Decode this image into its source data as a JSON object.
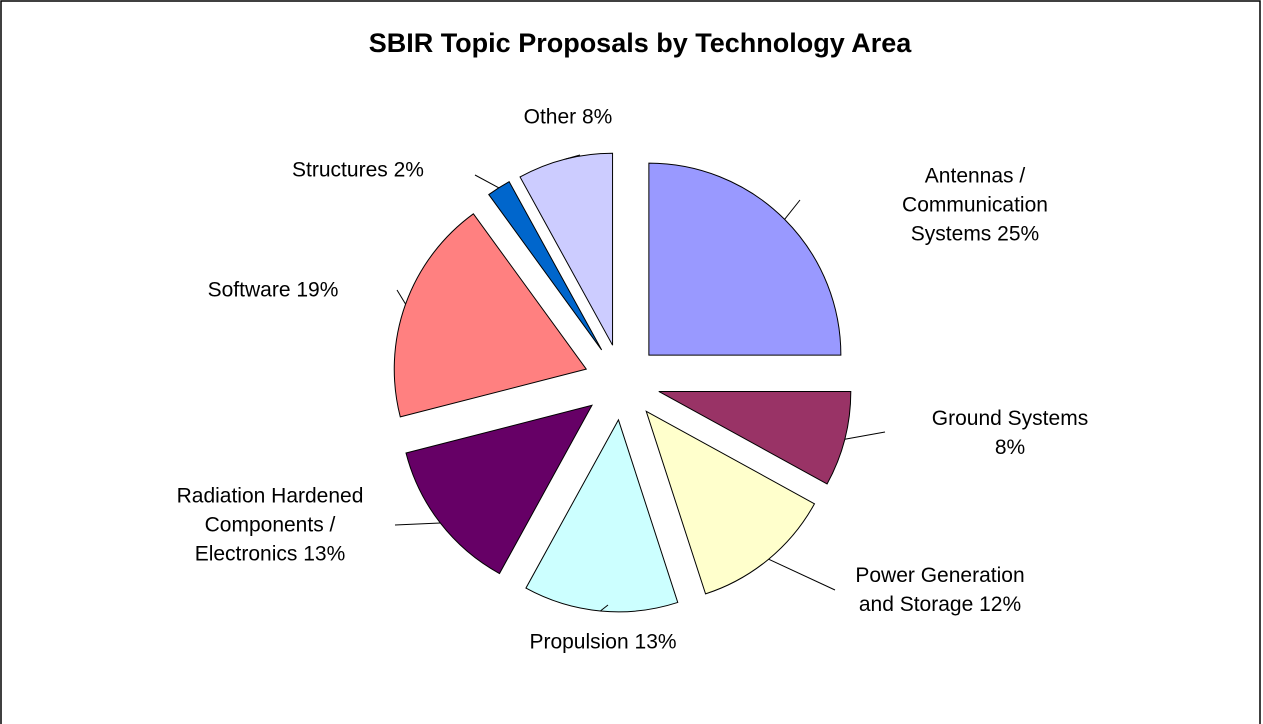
{
  "chart_data": {
    "type": "pie",
    "title": "SBIR Topic Proposals by Technology Area",
    "categories": [
      "Antennas / Communication Systems",
      "Ground Systems",
      "Power Generation and Storage",
      "Propulsion",
      "Radiation Hardened Components / Electronics",
      "Software",
      "Structures",
      "Other"
    ],
    "values": [
      25,
      8,
      12,
      13,
      13,
      19,
      2,
      8
    ],
    "value_labels": [
      "25%",
      "8%",
      "12%",
      "13%",
      "13%",
      "19%",
      "2%",
      "8%"
    ],
    "colors": [
      "#9999ff",
      "#993366",
      "#ffffcc",
      "#ccffff",
      "#660066",
      "#ff8080",
      "#0066cc",
      "#ccccff"
    ]
  }
}
